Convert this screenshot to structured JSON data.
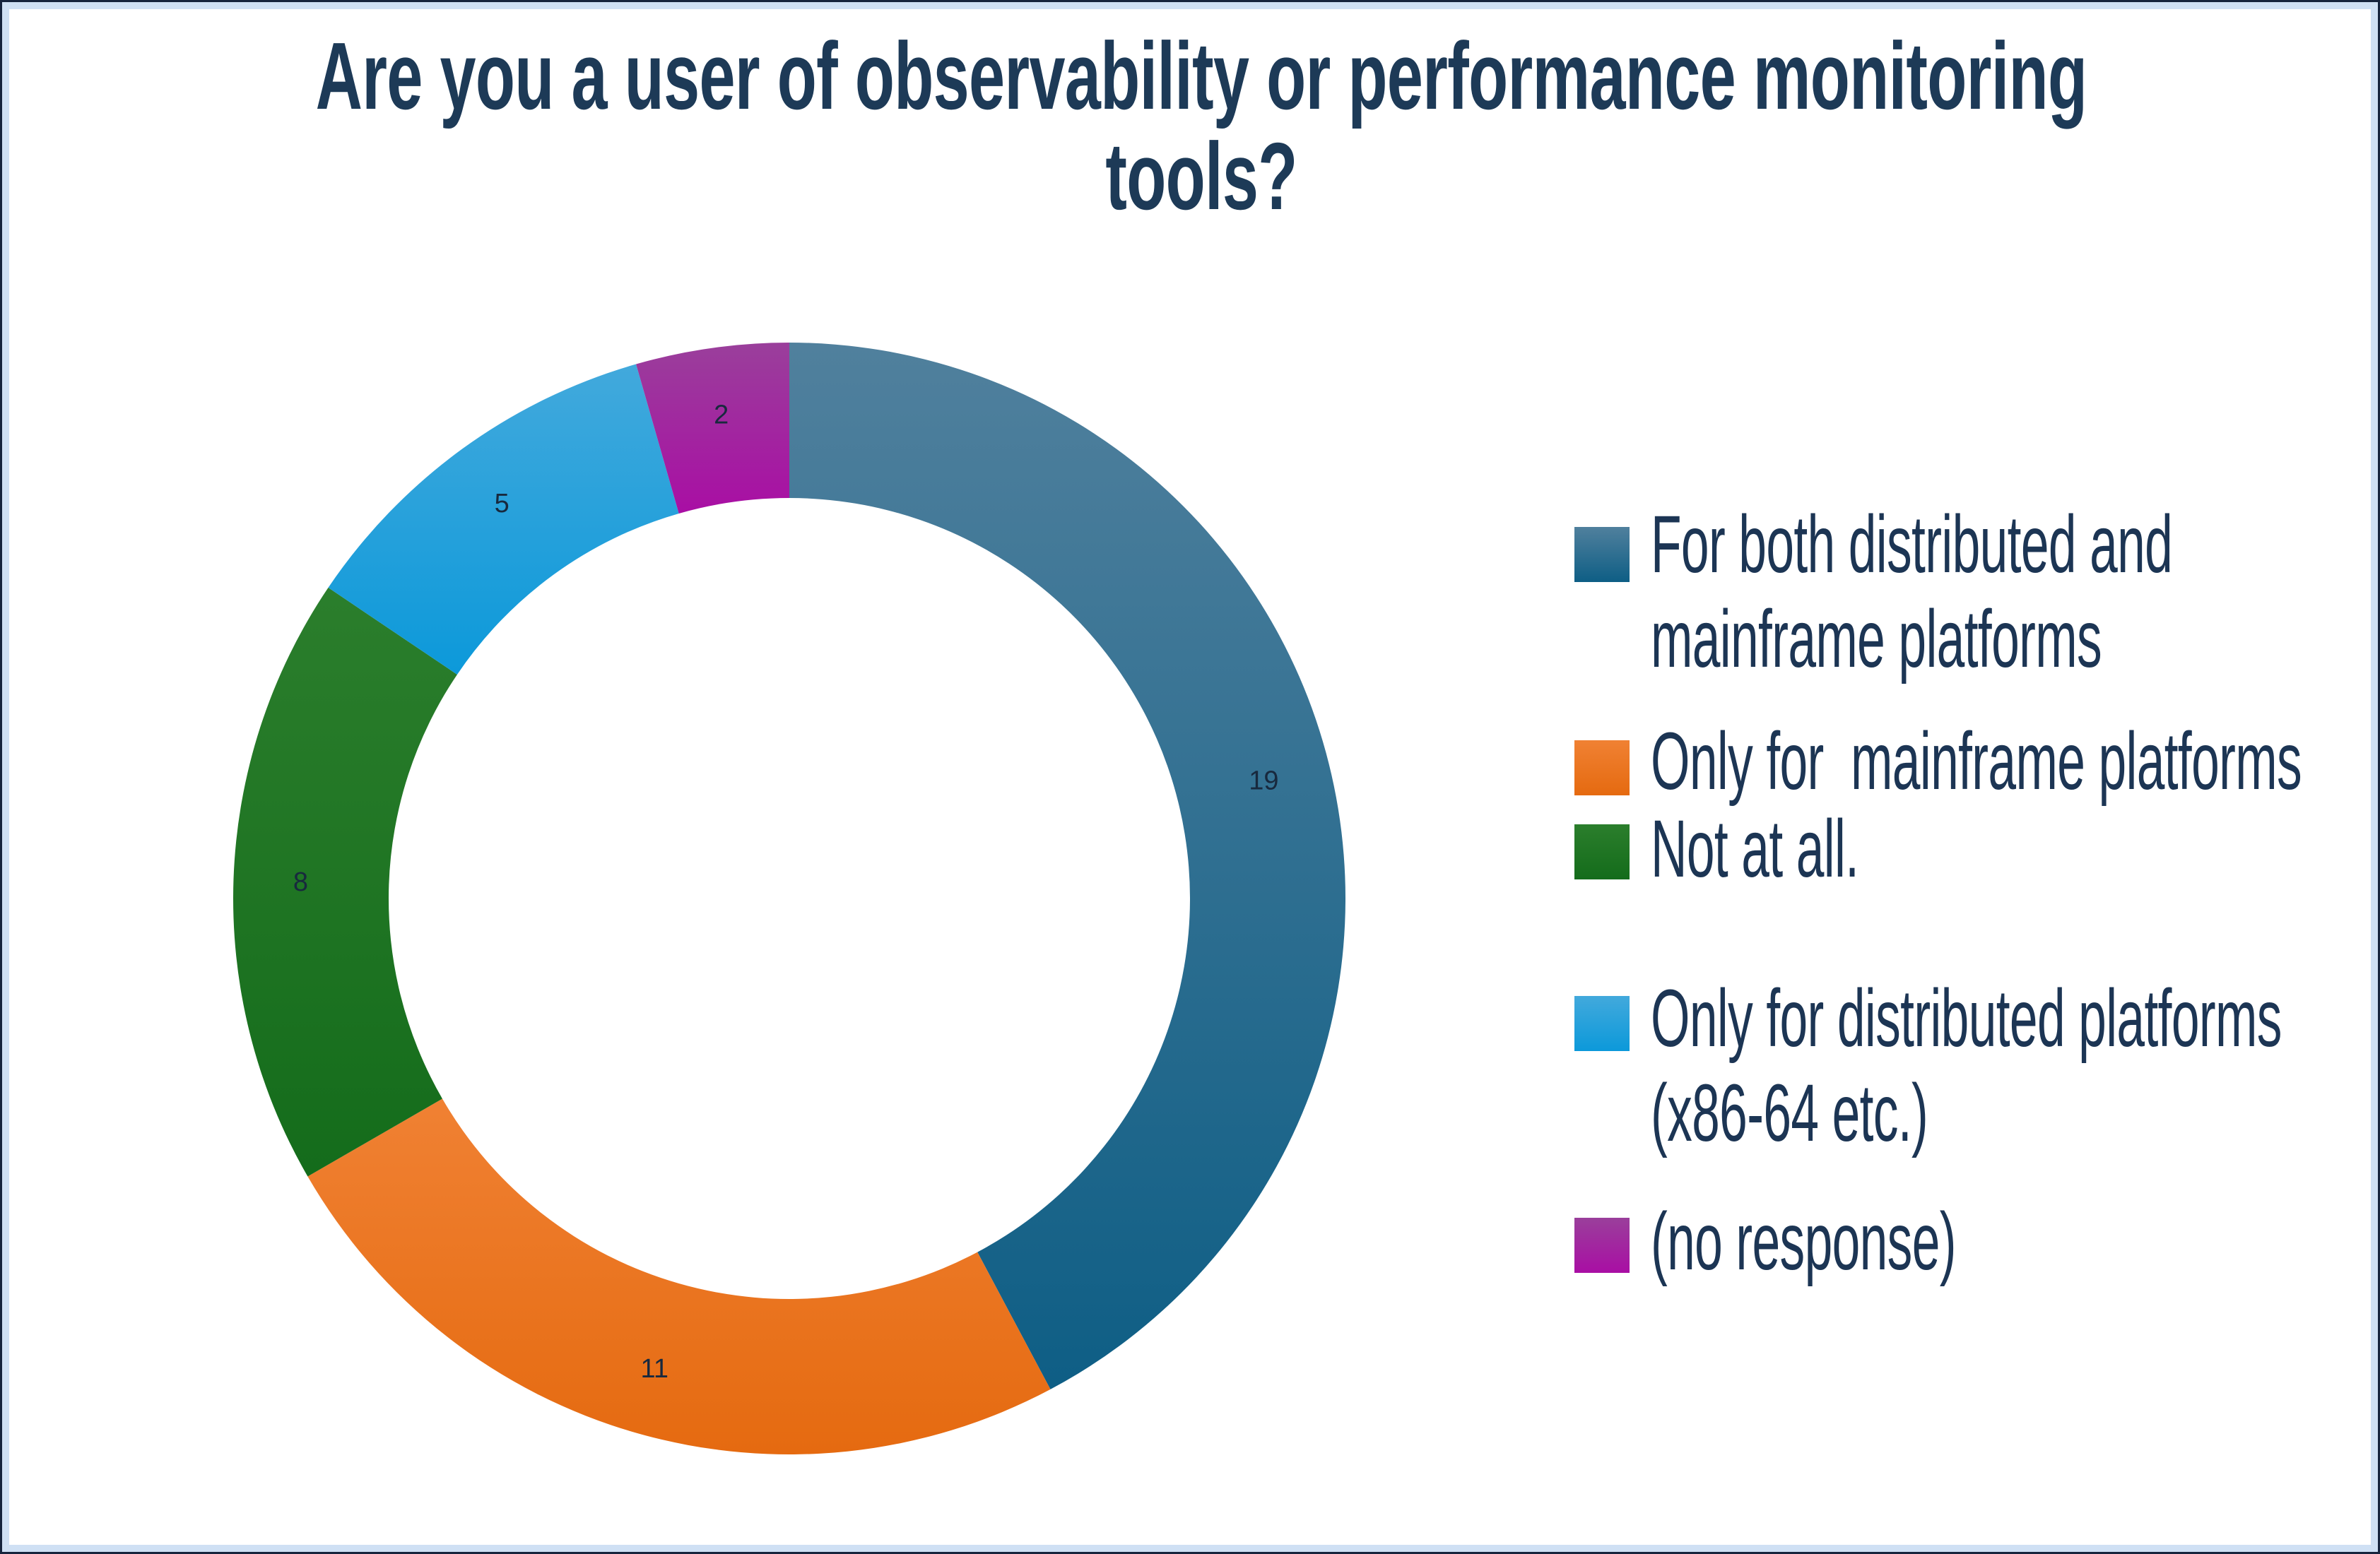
{
  "title": {
    "line1": "Are you a user of observability or performance monitoring",
    "line2": "tools?",
    "color": "#1d3a57"
  },
  "chart_data": {
    "type": "pie",
    "subtype": "donut",
    "title": "Are you a user of observability or performance monitoring tools?",
    "categories": [
      "For both distributed and mainframe platforms",
      "Only for  mainframe platforms",
      "Not at all.",
      "Only for distributed platforms (x86-64 etc.)",
      "(no response)"
    ],
    "values": [
      19,
      11,
      8,
      5,
      2
    ],
    "total": 45,
    "start_angle_deg": 0,
    "direction": "clockwise",
    "hole_ratio": 0.72,
    "grid": false,
    "legend_position": "right",
    "data_labels_shown": true,
    "data_label_color": "#18293e",
    "slices": [
      {
        "name": "both-platforms",
        "value": 19,
        "color_base": "#1f6386",
        "color_light": "#50809d",
        "color_dark": "#0e5e85",
        "legend_lines": [
          "For both distributed and",
          "mainframe platforms"
        ]
      },
      {
        "name": "only-mainframe",
        "value": 11,
        "color_base": "#e9711c",
        "color_light": "#f08133",
        "color_dark": "#e56a10",
        "legend_lines": [
          "Only for  mainframe platforms"
        ]
      },
      {
        "name": "not-at-all",
        "value": 8,
        "color_base": "#1c7823",
        "color_light": "#2b7e2c",
        "color_dark": "#146c1b",
        "legend_lines": [
          "Not at all."
        ]
      },
      {
        "name": "only-distributed",
        "value": 5,
        "color_base": "#16a0dd",
        "color_light": "#42a9dc",
        "color_dark": "#0c99da",
        "legend_lines": [
          "Only for distributed platforms",
          "(x86-64 etc.)"
        ]
      },
      {
        "name": "no-response",
        "value": 2,
        "color_base": "#a81ca2",
        "color_light": "#9a3f9b",
        "color_dark": "#a90ea4",
        "legend_lines": [
          "(no response)"
        ]
      }
    ]
  },
  "frame": {
    "outer_border_color": "#16243d",
    "inner_border_color": "#cfe0f4"
  }
}
